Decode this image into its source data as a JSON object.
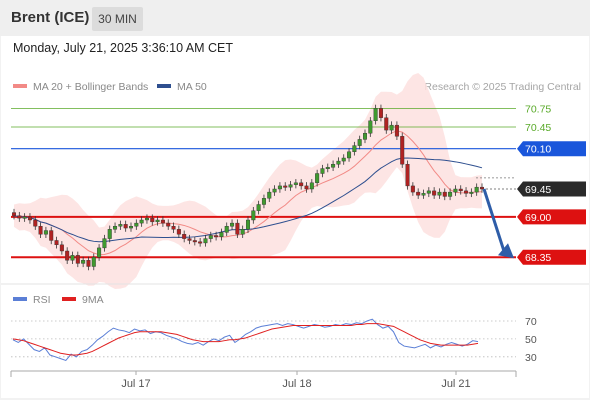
{
  "header": {
    "title": "Brent (ICE)",
    "timeframe": "30 MIN"
  },
  "datetime": "Monday, July 21, 2025 3:36:10 AM CET",
  "chart_data": [
    {
      "type": "candlestick",
      "legend": [
        {
          "label": "MA 20 + Bollinger Bands",
          "color": "#f28a86"
        },
        {
          "label": "MA 50",
          "color": "#2e4f8f"
        }
      ],
      "attribution": "Research © 2025 Trading Central",
      "ylim": [
        67.95,
        70.95
      ],
      "x_tick_labels": [
        "Jul 17",
        "Jul 18",
        "Jul 21"
      ],
      "levels": [
        {
          "value": 70.75,
          "label": "70.75",
          "kind": "target",
          "color": "#5aaa2a"
        },
        {
          "value": 70.45,
          "label": "70.45",
          "kind": "target",
          "color": "#5aaa2a"
        },
        {
          "value": 70.1,
          "label": "70.10",
          "kind": "resistance",
          "color": "#1a56db"
        },
        {
          "value": 69.45,
          "label": "69.45",
          "kind": "last_price",
          "color": "#2a2a2a"
        },
        {
          "value": 69.0,
          "label": "69.00",
          "kind": "support",
          "color": "#dd1111"
        },
        {
          "value": 68.35,
          "label": "68.35",
          "kind": "support",
          "color": "#dd1111"
        }
      ],
      "forecast_arrow": {
        "from": 69.45,
        "to": 68.35,
        "direction": "down",
        "color": "#2e5da8"
      },
      "ohlc_close_path": [
        69.02,
        68.98,
        69.0,
        68.95,
        68.85,
        68.72,
        68.78,
        68.62,
        68.55,
        68.45,
        68.3,
        68.38,
        68.25,
        68.3,
        68.2,
        68.35,
        68.5,
        68.65,
        68.8,
        68.85,
        68.88,
        68.82,
        68.85,
        68.9,
        68.95,
        68.98,
        68.92,
        68.95,
        68.9,
        68.85,
        68.8,
        68.72,
        68.65,
        68.62,
        68.6,
        68.58,
        68.65,
        68.7,
        68.68,
        68.75,
        68.85,
        68.9,
        68.72,
        68.8,
        68.95,
        69.1,
        69.2,
        69.3,
        69.4,
        69.45,
        69.5,
        69.48,
        69.52,
        69.55,
        69.5,
        69.45,
        69.55,
        69.7,
        69.78,
        69.8,
        69.85,
        69.9,
        69.95,
        70.05,
        70.15,
        70.25,
        70.35,
        70.55,
        70.75,
        70.6,
        70.4,
        70.48,
        70.3,
        69.85,
        69.5,
        69.4,
        69.35,
        69.38,
        69.42,
        69.35,
        69.4,
        69.33,
        69.4,
        69.45,
        69.42,
        69.38,
        69.4,
        69.48,
        69.45
      ]
    },
    {
      "type": "line",
      "title": "",
      "legend": [
        {
          "label": "RSI",
          "color": "#5b7fd6"
        },
        {
          "label": "9MA",
          "color": "#e02020"
        }
      ],
      "ylim": [
        22,
        80
      ],
      "y_tick_labels": [
        "70",
        "50",
        "30"
      ],
      "series": [
        {
          "name": "RSI",
          "values": [
            49,
            46,
            50,
            44,
            38,
            36,
            40,
            32,
            30,
            28,
            26,
            33,
            30,
            36,
            38,
            43,
            49,
            53,
            58,
            62,
            60,
            59,
            57,
            61,
            59,
            60,
            56,
            58,
            57,
            54,
            52,
            50,
            47,
            45,
            44,
            46,
            43,
            47,
            50,
            48,
            52,
            54,
            46,
            50,
            55,
            58,
            62,
            64,
            65,
            66,
            67,
            65,
            67,
            66,
            64,
            62,
            64,
            66,
            65,
            63,
            64,
            66,
            65,
            67,
            66,
            68,
            67,
            70,
            72,
            66,
            62,
            64,
            58,
            46,
            42,
            41,
            40,
            42,
            44,
            40,
            43,
            41,
            44,
            46,
            44,
            42,
            44,
            48,
            47
          ]
        },
        {
          "name": "9MA",
          "values": [
            50,
            49,
            48,
            46,
            44,
            42,
            40,
            38,
            36,
            34,
            33,
            32,
            32,
            33,
            34,
            36,
            39,
            42,
            45,
            48,
            51,
            53,
            55,
            57,
            58,
            58,
            58,
            58,
            58,
            57,
            56,
            55,
            53,
            51,
            49,
            48,
            47,
            47,
            47,
            47,
            48,
            49,
            49,
            50,
            51,
            53,
            55,
            57,
            59,
            61,
            62,
            63,
            64,
            65,
            65,
            65,
            65,
            65,
            65,
            65,
            65,
            65,
            65,
            65,
            65,
            66,
            66,
            67,
            67,
            67,
            66,
            65,
            64,
            61,
            58,
            55,
            52,
            49,
            47,
            45,
            44,
            43,
            43,
            43,
            43,
            43,
            43,
            44,
            45
          ]
        }
      ]
    }
  ]
}
